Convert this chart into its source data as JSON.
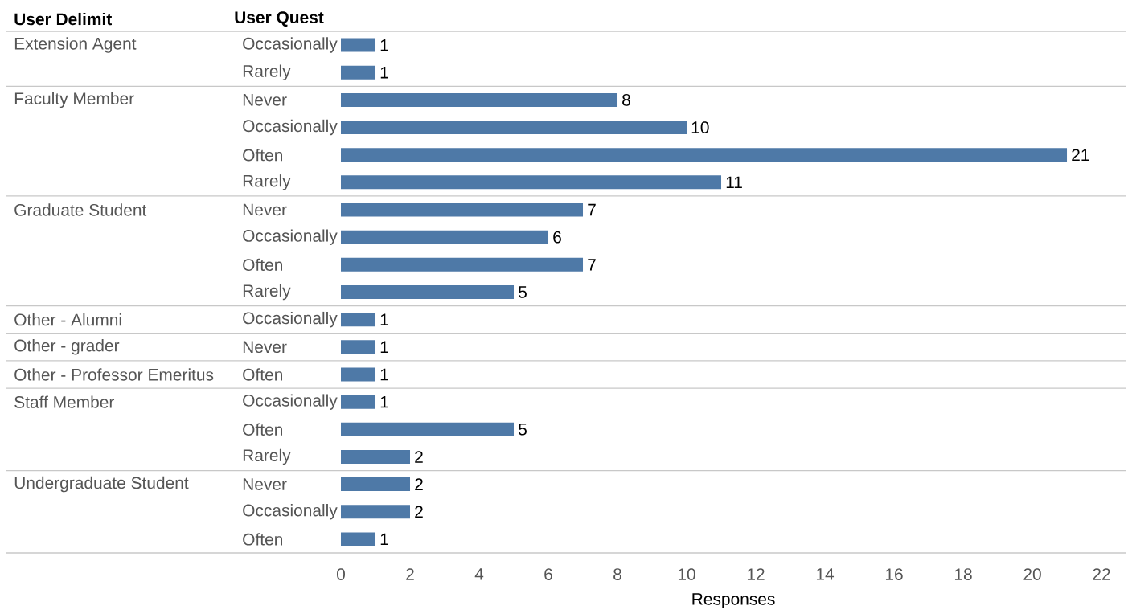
{
  "chart_data": {
    "type": "bar",
    "orientation": "horizontal",
    "xlabel": "Responses",
    "ylabel": "User Quest",
    "categories": [
      "Occasionally",
      "Rarely",
      "Never",
      "Occasionally",
      "Often",
      "Rarely",
      "Never",
      "Occasionally",
      "Often",
      "Rarely",
      "Occasionally",
      "Never",
      "Often",
      "Occasionally",
      "Often",
      "Rarely",
      "Never",
      "Occasionally",
      "Often"
    ],
    "values": [
      1,
      1,
      8,
      10,
      21,
      11,
      7,
      6,
      7,
      5,
      1,
      1,
      1,
      1,
      5,
      2,
      2,
      2,
      1
    ],
    "color": "#4e79a7",
    "data_labels": true,
    "xlim": [
      0,
      22.7
    ],
    "xticks": [
      0,
      2,
      4,
      6,
      8,
      10,
      12,
      14,
      16,
      18,
      20,
      22
    ],
    "grid": false,
    "annotations": [
      "User Delimit",
      "Extension Agent",
      "Faculty Member",
      "Graduate Student",
      "Other - Alumni",
      "Other - grader",
      "Other - Professor Emeritus",
      "Staff Member",
      "Undergraduate Student"
    ]
  }
}
